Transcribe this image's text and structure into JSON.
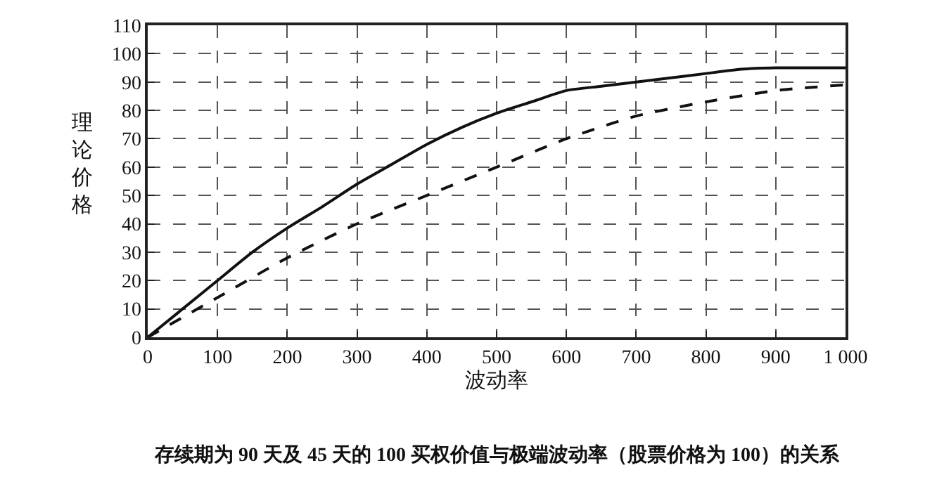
{
  "chart_data": {
    "type": "line",
    "xlabel": "波动率",
    "ylabel": "理论价格",
    "annotations": [
      "存续期为 90 天及 45 天的 100 买权价值与极端波动率（股票价格为 100）的关系"
    ],
    "series": [
      {
        "color": "#111111",
        "line_style": "solid",
        "x": [
          0,
          50,
          100,
          150,
          200,
          250,
          300,
          350,
          400,
          450,
          500,
          550,
          600,
          650,
          700,
          750,
          800,
          850,
          900,
          950,
          1000
        ],
        "values": [
          0,
          10,
          20,
          30,
          38.5,
          46,
          54,
          61,
          68,
          74,
          79,
          83,
          87,
          88.5,
          90,
          91.5,
          93,
          94.5,
          95,
          95,
          95
        ]
      },
      {
        "color": "#111111",
        "line_style": "dashed",
        "x": [
          0,
          100,
          200,
          300,
          400,
          500,
          600,
          700,
          800,
          900,
          1000
        ],
        "values": [
          0,
          14,
          28,
          40,
          50,
          60,
          70,
          78,
          83,
          87,
          89
        ]
      }
    ],
    "xlim": [
      0,
      1000
    ],
    "xticks": [
      0,
      100,
      200,
      300,
      400,
      500,
      600,
      700,
      800,
      900,
      {
        "value": 1000,
        "label": "1 000"
      }
    ],
    "ylim": [
      0,
      110
    ],
    "yticks": [
      0,
      10,
      20,
      30,
      40,
      50,
      60,
      70,
      80,
      90,
      100,
      110
    ],
    "grid": true,
    "marker": "none"
  }
}
